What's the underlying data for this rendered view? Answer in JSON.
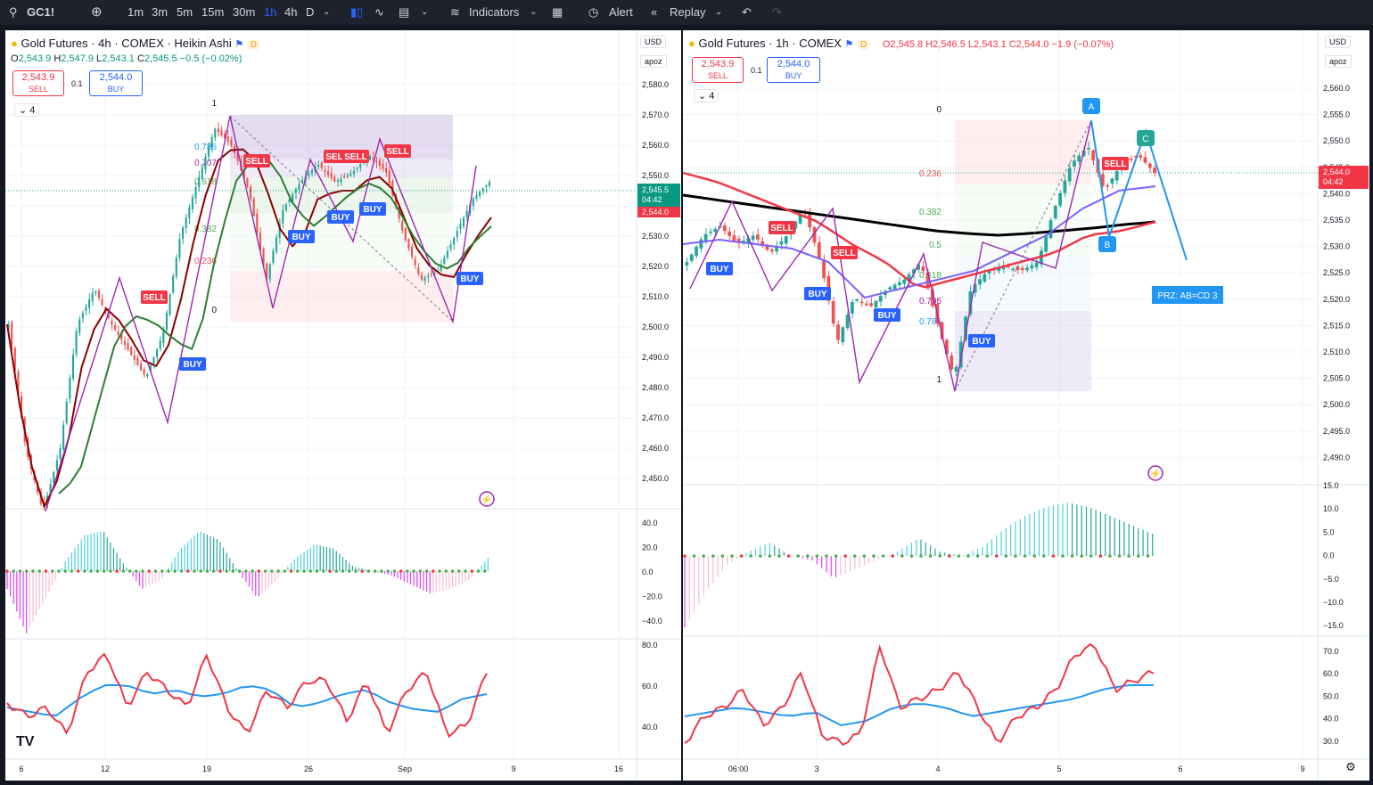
{
  "toolbar": {
    "symbol": "GC1!",
    "intervals": [
      "1m",
      "3m",
      "5m",
      "15m",
      "30m",
      "1h",
      "4h",
      "D"
    ],
    "active_interval": "1h",
    "indicators_label": "Indicators",
    "alert_label": "Alert",
    "replay_label": "Replay"
  },
  "left": {
    "title": "Gold Futures · 4h · COMEX · Heikin Ashi",
    "flag": "D",
    "ohlc": {
      "o": "2,543.9",
      "h": "2,547.9",
      "l": "2,543.1",
      "c": "2,545.5",
      "chg": "−0.5 (−0.02%)"
    },
    "sell_price": "2,543.9",
    "sell_label": "SELL",
    "spread": "0.1",
    "buy_price": "2,544.0",
    "buy_label": "BUY",
    "collapse": "4",
    "currency": "USD",
    "scale_mode": "apoz",
    "price_ticks": [
      "2,580.0",
      "2,570.0",
      "2,560.0",
      "2,550.0",
      "2,540.0",
      "2,530.0",
      "2,520.0",
      "2,510.0",
      "2,500.0",
      "2,490.0",
      "2,480.0",
      "2,470.0",
      "2,460.0",
      "2,450.0"
    ],
    "price_tag": "2,545.5",
    "price_timer": "04:42",
    "price_tag2": "2,544.0",
    "macd_ticks": [
      "40.0",
      "20.0",
      "0.0",
      "−20.0",
      "−40.0"
    ],
    "rsi_ticks": [
      "80.0",
      "60.0",
      "40.0"
    ],
    "time_ticks": [
      "6",
      "12",
      "19",
      "26",
      "Sep",
      "9",
      "16"
    ],
    "fib_labels": [
      "1",
      "0.786",
      "0.707",
      "0.618",
      "0.382",
      "0.236",
      "0"
    ],
    "signals": [
      "SELL",
      "SELL",
      "SELL",
      "SELL",
      "SELL",
      "BUY",
      "BUY",
      "BUY",
      "BUY",
      "BUY"
    ]
  },
  "right": {
    "title": "Gold Futures · 1h · COMEX",
    "flag": "D",
    "ohlc": {
      "o": "2,545.8",
      "h": "2,546.5",
      "l": "2,543.1",
      "c": "2,544.0",
      "chg": "−1.9 (−0.07%)"
    },
    "sell_price": "2,543.9",
    "sell_label": "SELL",
    "spread": "0.1",
    "buy_price": "2,544.0",
    "buy_label": "BUY",
    "collapse": "4",
    "currency": "USD",
    "scale_mode": "apoz",
    "price_ticks": [
      "2,560.0",
      "2,555.0",
      "2,550.0",
      "2,545.0",
      "2,540.0",
      "2,535.0",
      "2,530.0",
      "2,525.0",
      "2,520.0",
      "2,515.0",
      "2,510.0",
      "2,505.0",
      "2,500.0",
      "2,495.0",
      "2,490.0"
    ],
    "price_tag": "2,544.0",
    "price_timer": "04:42",
    "macd_ticks": [
      "15.0",
      "10.0",
      "5.0",
      "0.0",
      "−5.0",
      "−10.0",
      "−15.0"
    ],
    "rsi_ticks": [
      "70.0",
      "60.0",
      "50.0",
      "40.0",
      "30.0"
    ],
    "time_ticks": [
      "06:00",
      "3",
      "4",
      "5",
      "6",
      "9"
    ],
    "fib_labels": [
      "0",
      "0.236",
      "0.382",
      "0.5",
      "0.618",
      "0.705",
      "0.786",
      "1"
    ],
    "pattern_points": [
      "A",
      "B",
      "C"
    ],
    "przs_label": "PRZ: AB=CD 3",
    "signals": [
      "SELL",
      "SELL",
      "SELL",
      "BUY",
      "BUY",
      "BUY",
      "BUY"
    ]
  },
  "colors": {
    "bull": "#26a69a",
    "bear": "#ef5350",
    "accent": "#2962ff",
    "sell": "#f23645",
    "macd_up": "#4dd0e1",
    "macd_down": "#e040fb",
    "rsi": "#f23645",
    "rsi_ma": "#2196f3"
  }
}
